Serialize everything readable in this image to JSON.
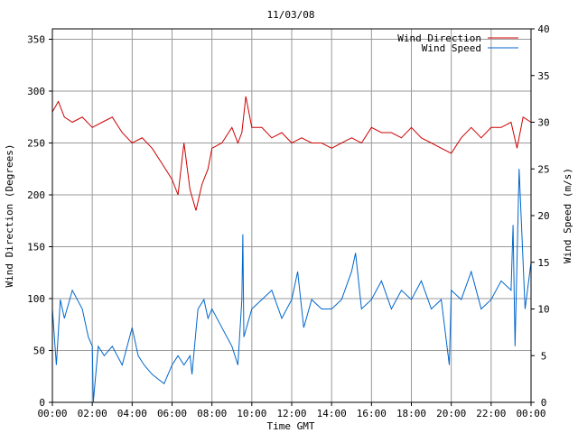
{
  "chart_data": {
    "type": "line",
    "title": "11/03/08",
    "xlabel": "Time GMT",
    "ylabel_left": "Wind Direction (Degrees)",
    "ylabel_right": "Wind Speed (m/s)",
    "xlim": [
      0,
      24
    ],
    "ylim_left": [
      0,
      360
    ],
    "ylim_right": [
      0,
      40
    ],
    "x_ticks": [
      0,
      2,
      4,
      6,
      8,
      10,
      12,
      14,
      16,
      18,
      20,
      22,
      24
    ],
    "x_tick_labels": [
      "00:00",
      "02:00",
      "04:00",
      "06:00",
      "08:00",
      "10:00",
      "12:00",
      "14:00",
      "16:00",
      "18:00",
      "20:00",
      "22:00",
      "00:00"
    ],
    "y_left_ticks": [
      0,
      50,
      100,
      150,
      200,
      250,
      300,
      350
    ],
    "y_left_tick_labels": [
      "0",
      "50",
      "100",
      "150",
      "200",
      "250",
      "300",
      "350"
    ],
    "y_right_ticks": [
      0,
      5,
      10,
      15,
      20,
      25,
      30,
      35,
      40
    ],
    "y_right_tick_labels": [
      "0",
      "5",
      "10",
      "15",
      "20",
      "25",
      "30",
      "35",
      "40"
    ],
    "grid": true,
    "legend_position": "top-right",
    "series": [
      {
        "name": "Wind Direction",
        "axis": "left",
        "color": "#cc0000",
        "x": [
          0,
          0.3,
          0.6,
          1,
          1.5,
          2,
          2.5,
          3,
          3.5,
          4,
          4.5,
          5,
          5.5,
          6,
          6.3,
          6.6,
          6.9,
          7.2,
          7.5,
          7.8,
          8,
          8.5,
          9,
          9.3,
          9.5,
          9.7,
          10,
          10.5,
          11,
          11.5,
          12,
          12.5,
          13,
          13.5,
          14,
          14.5,
          15,
          15.5,
          16,
          16.5,
          17,
          17.5,
          18,
          18.5,
          19,
          19.5,
          20,
          20.5,
          21,
          21.5,
          22,
          22.5,
          23,
          23.3,
          23.6,
          24
        ],
        "values": [
          280,
          290,
          275,
          270,
          275,
          265,
          270,
          275,
          260,
          250,
          255,
          245,
          230,
          215,
          200,
          250,
          205,
          185,
          210,
          225,
          245,
          250,
          265,
          250,
          260,
          295,
          265,
          265,
          255,
          260,
          250,
          255,
          250,
          250,
          245,
          250,
          255,
          250,
          265,
          260,
          260,
          255,
          265,
          255,
          250,
          245,
          240,
          255,
          265,
          255,
          265,
          265,
          270,
          245,
          275,
          270
        ]
      },
      {
        "name": "Wind Speed",
        "axis": "right",
        "color": "#0066cc",
        "x": [
          0,
          0.2,
          0.4,
          0.6,
          1,
          1.5,
          1.8,
          2,
          2.05,
          2.3,
          2.6,
          3,
          3.5,
          4,
          4.3,
          4.6,
          5,
          5.3,
          5.6,
          6,
          6.3,
          6.6,
          6.9,
          7,
          7.3,
          7.6,
          7.8,
          8,
          8.5,
          9,
          9.3,
          9.5,
          9.55,
          9.6,
          10,
          10.5,
          11,
          11.5,
          12,
          12.3,
          12.6,
          13,
          13.5,
          14,
          14.5,
          15,
          15.2,
          15.5,
          16,
          16.5,
          17,
          17.5,
          18,
          18.5,
          19,
          19.5,
          19.9,
          20,
          20.5,
          21,
          21.5,
          22,
          22.5,
          23,
          23.1,
          23.2,
          23.4,
          23.7,
          24
        ],
        "values": [
          10,
          4,
          11,
          9,
          12,
          10,
          7,
          6,
          0,
          6,
          5,
          6,
          4,
          8,
          5,
          4,
          3,
          2.5,
          2,
          4,
          5,
          4,
          5,
          3,
          10,
          11,
          9,
          10,
          8,
          6,
          4,
          11,
          18,
          7,
          10,
          11,
          12,
          9,
          11,
          14,
          8,
          11,
          10,
          10,
          11,
          14,
          16,
          10,
          11,
          13,
          10,
          12,
          11,
          13,
          10,
          11,
          4,
          12,
          11,
          14,
          10,
          11,
          13,
          12,
          19,
          6,
          25,
          10,
          15
        ]
      }
    ]
  }
}
